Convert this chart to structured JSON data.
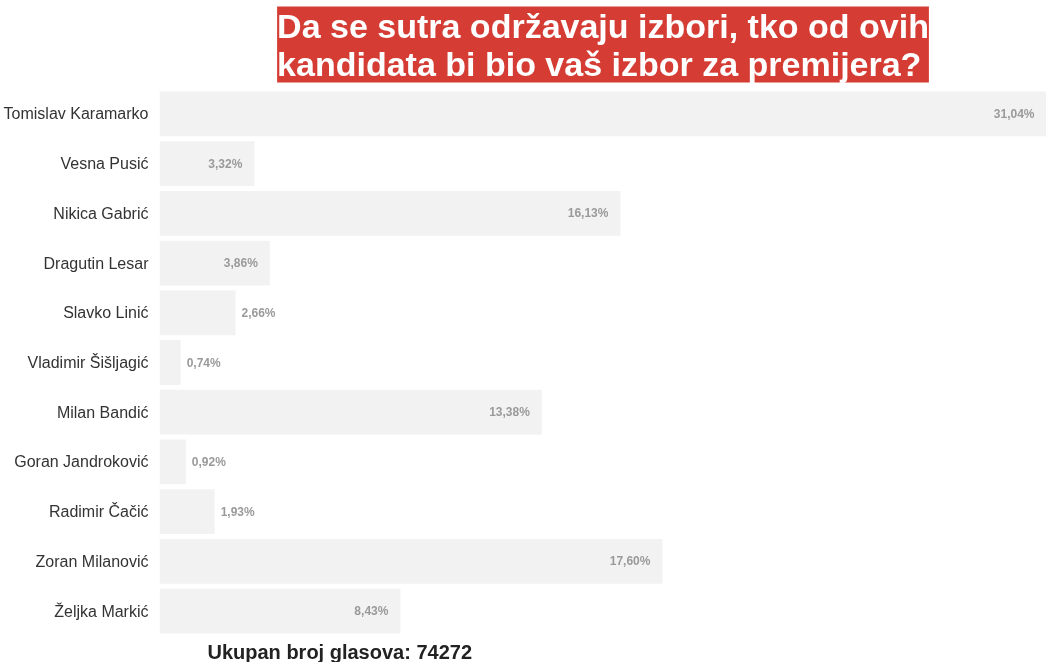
{
  "chart_data": {
    "type": "bar",
    "orientation": "horizontal",
    "title": "Da se sutra održavaju izbori, tko od ovih kandidata bi bio vaš izbor za premijera?",
    "categories": [
      "Tomislav Karamarko",
      "Vesna Pusić",
      "Nikica Gabrić",
      "Dragutin Lesar",
      "Slavko Linić",
      "Vladimir Šišljagić",
      "Milan Bandić",
      "Goran Jandroković",
      "Radimir Čačić",
      "Zoran Milanović",
      "Željka Markić"
    ],
    "values": [
      31.04,
      3.32,
      16.13,
      3.86,
      2.66,
      0.74,
      13.38,
      0.92,
      1.93,
      17.6,
      8.43
    ],
    "value_labels": [
      "31,04%",
      "3,32%",
      "16,13%",
      "3,86%",
      "2,66%",
      "0,74%",
      "13,38%",
      "0,92%",
      "1,93%",
      "17,60%",
      "8,43%"
    ],
    "color": "#f2f2f2",
    "tick_labels": "y",
    "grid": false,
    "annotations": [
      "Ukupan broj glasova: 74272"
    ]
  }
}
